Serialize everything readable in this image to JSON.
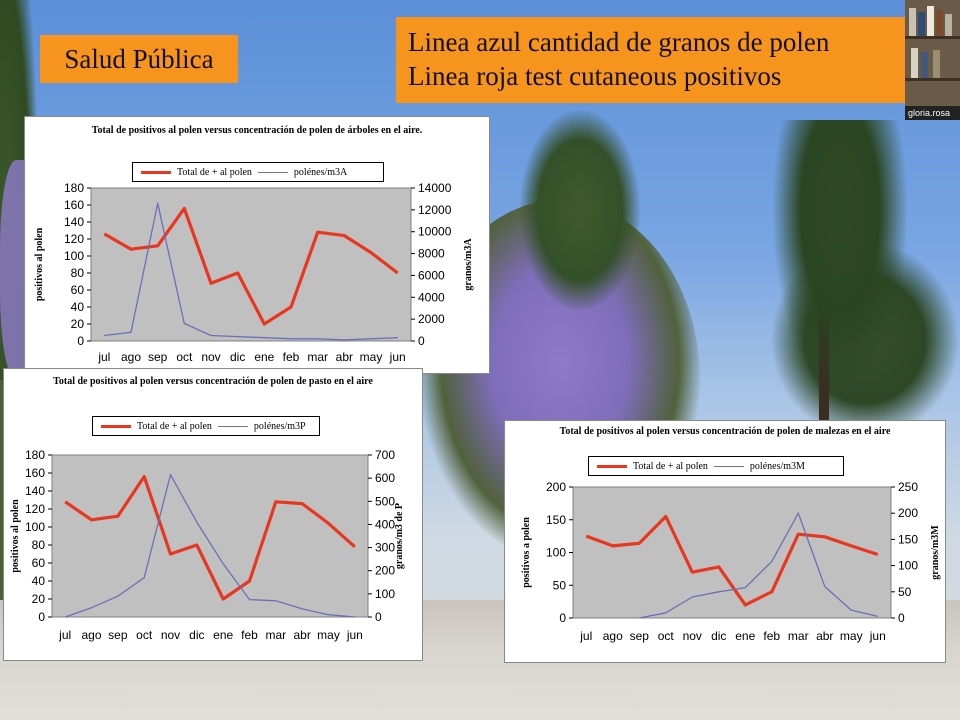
{
  "header": {
    "salud_label": "Salud Pública",
    "note_line1": "Linea azul cantidad de granos de polen",
    "note_line2": "Linea roja test cutaneous positivos"
  },
  "webcam": {
    "name": "gloria.rosa"
  },
  "colors": {
    "red_series": "#e8361f",
    "blue_series": "#6a70b8",
    "plot_bg": "#c0c0c0",
    "title_bg": "#f7941d"
  },
  "chart_data": [
    {
      "type": "line",
      "title": "Total de positivos al polen versus concentración de polen de árboles en el aire.",
      "categories": [
        "jul",
        "ago",
        "sep",
        "oct",
        "nov",
        "dic",
        "ene",
        "feb",
        "mar",
        "abr",
        "may",
        "jun"
      ],
      "ylabel": "positivos al polen",
      "y2label": "granos/m3A",
      "ylim": [
        0,
        180
      ],
      "y_ticks": [
        "0",
        "20",
        "40",
        "60",
        "80",
        "100",
        "120",
        "140",
        "160",
        "180"
      ],
      "y2lim": [
        0,
        14000
      ],
      "y2_ticks": [
        "0",
        "2000",
        "4000",
        "6000",
        "8000",
        "10000",
        "12000",
        "14000"
      ],
      "series": [
        {
          "name": "Total de + al polen",
          "axis": "left",
          "values": [
            126,
            108,
            112,
            156,
            68,
            80,
            20,
            40,
            128,
            124,
            104,
            80
          ]
        },
        {
          "name": "polénes/m3A",
          "axis": "right",
          "values": [
            500,
            800,
            12600,
            1600,
            500,
            400,
            300,
            200,
            200,
            100,
            200,
            300
          ]
        }
      ]
    },
    {
      "type": "line",
      "title": "Total de positivos al polen versus concentración de polen de pasto en el aire",
      "categories": [
        "jul",
        "ago",
        "sep",
        "oct",
        "nov",
        "dic",
        "ene",
        "feb",
        "mar",
        "abr",
        "may",
        "jun"
      ],
      "ylabel": "positivos al polen",
      "y2label": "granos/m3 de P",
      "ylim": [
        0,
        180
      ],
      "y_ticks": [
        "0",
        "20",
        "40",
        "60",
        "80",
        "100",
        "120",
        "140",
        "160",
        "180"
      ],
      "y2lim": [
        0,
        700
      ],
      "y2_ticks": [
        "0",
        "100",
        "200",
        "300",
        "400",
        "500",
        "600",
        "700"
      ],
      "series": [
        {
          "name": "Total de + al polen",
          "axis": "left",
          "values": [
            128,
            108,
            112,
            156,
            70,
            80,
            20,
            40,
            128,
            126,
            104,
            78
          ]
        },
        {
          "name": "polénes/m3P",
          "axis": "right",
          "values": [
            0,
            40,
            90,
            170,
            615,
            410,
            230,
            75,
            70,
            35,
            10,
            0
          ]
        }
      ]
    },
    {
      "type": "line",
      "title": "Total de positivos al polen versus concentración de polen de malezas en el aire",
      "categories": [
        "jul",
        "ago",
        "sep",
        "oct",
        "nov",
        "dic",
        "ene",
        "feb",
        "mar",
        "abr",
        "may",
        "jun"
      ],
      "ylabel": "positivos a polen",
      "y2label": "granos/m3M",
      "ylim": [
        0,
        200
      ],
      "y_ticks": [
        "0",
        "50",
        "100",
        "150",
        "200"
      ],
      "y2lim": [
        0,
        250
      ],
      "y2_ticks": [
        "0",
        "50",
        "100",
        "150",
        "200",
        "250"
      ],
      "series": [
        {
          "name": "Total de + al polen",
          "axis": "left",
          "values": [
            125,
            110,
            114,
            155,
            70,
            78,
            20,
            40,
            128,
            124,
            110,
            97
          ]
        },
        {
          "name": "polénes/m3M",
          "axis": "right",
          "values": [
            null,
            null,
            0,
            10,
            40,
            50,
            58,
            108,
            200,
            60,
            15,
            3
          ]
        }
      ]
    }
  ]
}
